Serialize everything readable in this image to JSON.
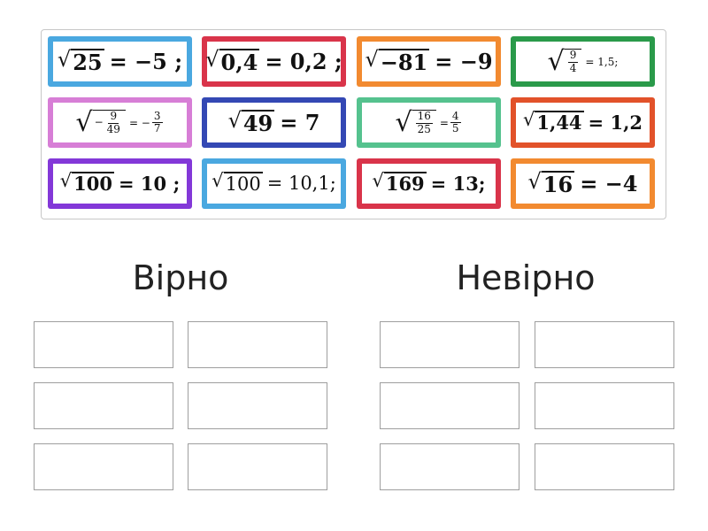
{
  "tiles": [
    {
      "radicand": "25",
      "rhs": "= −5 ;",
      "color": "#4aa8e0"
    },
    {
      "radicand": "0,4",
      "rhs": "= 0,2 ;",
      "color": "#d9344a"
    },
    {
      "radicand": "−81",
      "rhs": "= −9",
      "color": "#f28a30"
    },
    {
      "frac_num": "9",
      "frac_den": "4",
      "rhs": "= 1,5;",
      "color": "#2a9a4a"
    },
    {
      "prefix": "−",
      "frac_num": "9",
      "frac_den": "49",
      "rhs": "= −",
      "rhs_num": "3",
      "rhs_den": "7",
      "color": "#d77ed6"
    },
    {
      "radicand": "49",
      "rhs": "= 7",
      "color": "#3448b4"
    },
    {
      "frac_num": "16",
      "frac_den": "25",
      "rhs": "=",
      "rhs_num": "4",
      "rhs_den": "5",
      "color": "#55c28e"
    },
    {
      "radicand": "1,44",
      "rhs": "= 1,2",
      "color": "#e2522a"
    },
    {
      "radicand": "100",
      "rhs": "= 10 ;",
      "color": "#8338d8"
    },
    {
      "radicand": "100",
      "rhs": "= 10,1;",
      "color": "#4aa8e0"
    },
    {
      "radicand": "169",
      "rhs": "= 13;",
      "color": "#d9344a"
    },
    {
      "radicand": "16",
      "rhs": "= −4",
      "color": "#f28a30"
    }
  ],
  "columns": {
    "left_title": "Вірно",
    "right_title": "Невірно"
  }
}
